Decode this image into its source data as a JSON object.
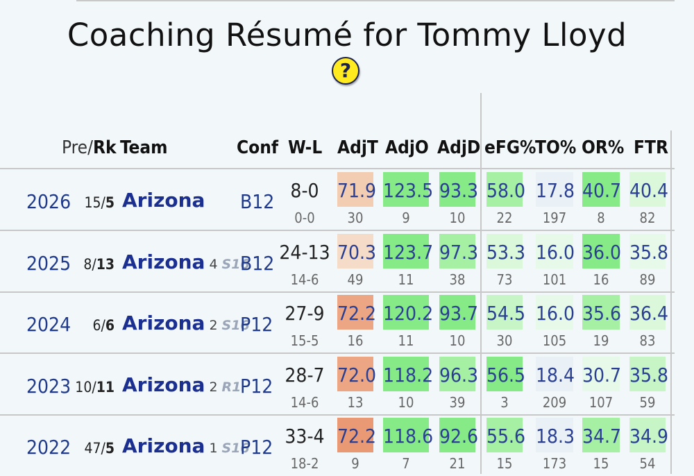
{
  "title": "Coaching Résumé for Tommy Lloyd",
  "help_glyph": "?",
  "headers": {
    "pre": "Pre/",
    "rk": "Rk",
    "team": "Team",
    "conf": "Conf",
    "wl": "W-L",
    "adjt": "AdjT",
    "adjo": "AdjO",
    "adjd": "AdjD",
    "efg": "eFG%",
    "to": "TO%",
    "or": "OR%",
    "ftr": "FTR"
  },
  "colors": {
    "orange_light": "#f2cdb2",
    "orange_pale": "#f5dcc9",
    "orange_mid": "#eca684",
    "orange_strong": "#e99a74",
    "green_strong": "#86ea86",
    "green_mid": "#a6f0a4",
    "green_light": "#c8f5c6",
    "green_pale": "#dcf8da",
    "green_faint": "#e7faea",
    "blue_faint": "#eaf1f6"
  },
  "rows": [
    {
      "year": "2026",
      "pre": "15/",
      "rk": "5",
      "team": "Arizona",
      "seed": "",
      "round": "",
      "conf": "B12",
      "wl": "8-0",
      "conf_wl": "0-0",
      "adjt": {
        "v": "71.9",
        "r": "30",
        "bg": "orange_light"
      },
      "adjo": {
        "v": "123.5",
        "r": "9",
        "bg": "green_strong"
      },
      "adjd": {
        "v": "93.3",
        "r": "10",
        "bg": "green_strong"
      },
      "efg": {
        "v": "58.0",
        "r": "22",
        "bg": "green_mid"
      },
      "to": {
        "v": "17.8",
        "r": "197",
        "bg": "blue_faint"
      },
      "or": {
        "v": "40.7",
        "r": "8",
        "bg": "green_strong"
      },
      "ftr": {
        "v": "40.4",
        "r": "82",
        "bg": "green_pale"
      }
    },
    {
      "year": "2025",
      "pre": "8/",
      "rk": "13",
      "team": "Arizona",
      "seed": "4",
      "round": "S16",
      "conf": "B12",
      "wl": "24-13",
      "conf_wl": "14-6",
      "adjt": {
        "v": "70.3",
        "r": "49",
        "bg": "orange_pale"
      },
      "adjo": {
        "v": "123.7",
        "r": "11",
        "bg": "green_strong"
      },
      "adjd": {
        "v": "97.3",
        "r": "38",
        "bg": "green_mid"
      },
      "efg": {
        "v": "53.3",
        "r": "73",
        "bg": "green_pale"
      },
      "to": {
        "v": "16.0",
        "r": "101",
        "bg": "green_faint"
      },
      "or": {
        "v": "36.0",
        "r": "16",
        "bg": "green_strong"
      },
      "ftr": {
        "v": "35.8",
        "r": "89",
        "bg": "green_faint"
      }
    },
    {
      "year": "2024",
      "pre": "6/",
      "rk": "6",
      "team": "Arizona",
      "seed": "2",
      "round": "S16",
      "conf": "P12",
      "wl": "27-9",
      "conf_wl": "15-5",
      "adjt": {
        "v": "72.2",
        "r": "16",
        "bg": "orange_mid"
      },
      "adjo": {
        "v": "120.2",
        "r": "11",
        "bg": "green_strong"
      },
      "adjd": {
        "v": "93.7",
        "r": "10",
        "bg": "green_strong"
      },
      "efg": {
        "v": "54.5",
        "r": "30",
        "bg": "green_light"
      },
      "to": {
        "v": "16.0",
        "r": "105",
        "bg": "green_faint"
      },
      "or": {
        "v": "35.6",
        "r": "19",
        "bg": "green_mid"
      },
      "ftr": {
        "v": "36.4",
        "r": "83",
        "bg": "green_pale"
      }
    },
    {
      "year": "2023",
      "pre": "10/",
      "rk": "11",
      "team": "Arizona",
      "seed": "2",
      "round": "R1",
      "conf": "P12",
      "wl": "28-7",
      "conf_wl": "14-6",
      "adjt": {
        "v": "72.0",
        "r": "13",
        "bg": "orange_mid"
      },
      "adjo": {
        "v": "118.2",
        "r": "10",
        "bg": "green_strong"
      },
      "adjd": {
        "v": "96.3",
        "r": "39",
        "bg": "green_mid"
      },
      "efg": {
        "v": "56.5",
        "r": "3",
        "bg": "green_strong"
      },
      "to": {
        "v": "18.4",
        "r": "209",
        "bg": "blue_faint"
      },
      "or": {
        "v": "30.7",
        "r": "107",
        "bg": "green_faint"
      },
      "ftr": {
        "v": "35.8",
        "r": "59",
        "bg": "green_light"
      }
    },
    {
      "year": "2022",
      "pre": "47/",
      "rk": "5",
      "team": "Arizona",
      "seed": "1",
      "round": "S16",
      "conf": "P12",
      "wl": "33-4",
      "conf_wl": "18-2",
      "adjt": {
        "v": "72.2",
        "r": "9",
        "bg": "orange_strong"
      },
      "adjo": {
        "v": "118.6",
        "r": "7",
        "bg": "green_strong"
      },
      "adjd": {
        "v": "92.6",
        "r": "21",
        "bg": "green_strong"
      },
      "efg": {
        "v": "55.6",
        "r": "15",
        "bg": "green_mid"
      },
      "to": {
        "v": "18.3",
        "r": "173",
        "bg": "blue_faint"
      },
      "or": {
        "v": "34.7",
        "r": "15",
        "bg": "green_mid"
      },
      "ftr": {
        "v": "34.9",
        "r": "54",
        "bg": "green_light"
      }
    }
  ]
}
